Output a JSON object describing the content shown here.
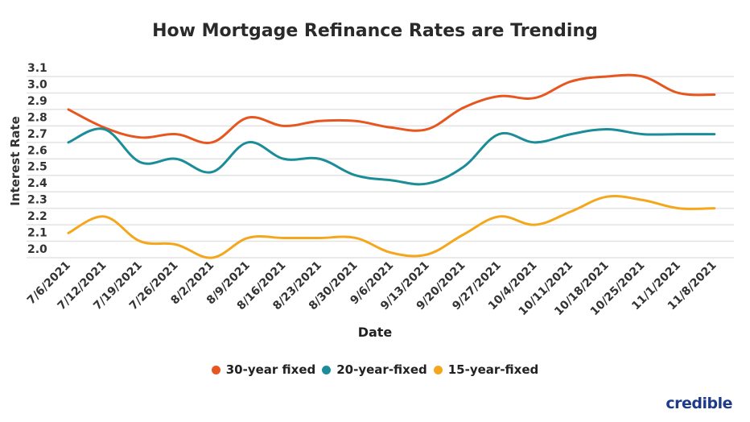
{
  "chart_data": {
    "type": "line",
    "title": "How Mortgage Refinance Rates are Trending",
    "xlabel": "Date",
    "ylabel": "Interest Rate",
    "ylim": [
      2.0,
      3.1
    ],
    "yticks": [
      "3.1",
      "3.0",
      "2.9",
      "2.8",
      "2.7",
      "2.6",
      "2.5",
      "2.4",
      "2.3",
      "2.2",
      "2.1",
      "2.0"
    ],
    "grid": true,
    "legend_position": "bottom",
    "categories": [
      "7/6/2021",
      "7/12/2021",
      "7/19/2021",
      "7/26/2021",
      "8/2/2021",
      "8/9/2021",
      "8/16/2021",
      "8/23/2021",
      "8/30/2021",
      "9/6/2021",
      "9/13/2021",
      "9/20/2021",
      "9/27/2021",
      "10/4/2021",
      "10/11/2021",
      "10/18/2021",
      "10/25/2021",
      "11/1/2021",
      "11/8/2021"
    ],
    "series": [
      {
        "name": "30-year fixed",
        "color": "#e8561f",
        "values": [
          2.9,
          2.79,
          2.73,
          2.75,
          2.7,
          2.85,
          2.8,
          2.83,
          2.83,
          2.79,
          2.78,
          2.91,
          2.98,
          2.97,
          3.07,
          3.1,
          3.1,
          3.0,
          2.99
        ]
      },
      {
        "name": "20-year-fixed",
        "color": "#1b8d99",
        "values": [
          2.7,
          2.78,
          2.58,
          2.6,
          2.52,
          2.7,
          2.6,
          2.6,
          2.5,
          2.47,
          2.45,
          2.55,
          2.75,
          2.7,
          2.75,
          2.78,
          2.75,
          2.75,
          2.75
        ]
      },
      {
        "name": "15-year-fixed",
        "color": "#f4a71d",
        "values": [
          2.15,
          2.25,
          2.1,
          2.08,
          2.0,
          2.12,
          2.12,
          2.12,
          2.12,
          2.03,
          2.02,
          2.14,
          2.25,
          2.2,
          2.28,
          2.37,
          2.35,
          2.3,
          2.3
        ]
      }
    ]
  },
  "logo": "credible"
}
